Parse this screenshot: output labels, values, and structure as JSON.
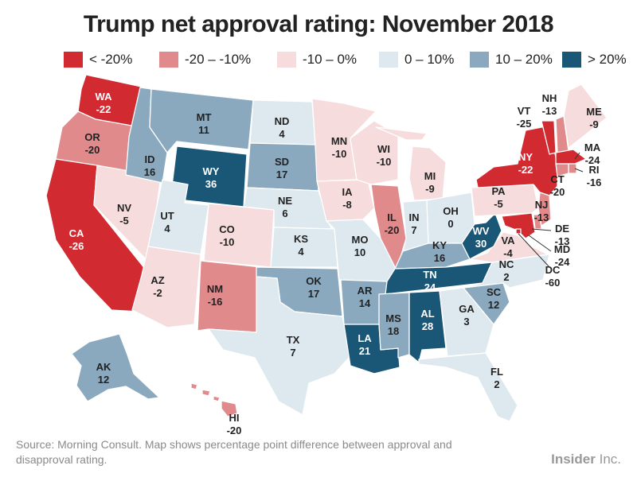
{
  "title": "Trump net approval rating: November 2018",
  "legend": [
    {
      "label": "< -20%",
      "color": "#d12b31"
    },
    {
      "label": "-20 – -10%",
      "color": "#e08a8c"
    },
    {
      "label": "-10 – 0%",
      "color": "#f6dcdc"
    },
    {
      "label": "0 – 10%",
      "color": "#dde8ef"
    },
    {
      "label": "10 – 20%",
      "color": "#8aa9bf"
    },
    {
      "label": "> 20%",
      "color": "#1a5675"
    }
  ],
  "states": {
    "WA": {
      "abbr": "WA",
      "value": "-22"
    },
    "OR": {
      "abbr": "OR",
      "value": "-20"
    },
    "CA": {
      "abbr": "CA",
      "value": "-26"
    },
    "NV": {
      "abbr": "NV",
      "value": "-5"
    },
    "ID": {
      "abbr": "ID",
      "value": "16"
    },
    "MT": {
      "abbr": "MT",
      "value": "11"
    },
    "WY": {
      "abbr": "WY",
      "value": "36"
    },
    "UT": {
      "abbr": "UT",
      "value": "4"
    },
    "AZ": {
      "abbr": "AZ",
      "value": "-2"
    },
    "CO": {
      "abbr": "CO",
      "value": "-10"
    },
    "NM": {
      "abbr": "NM",
      "value": "-16"
    },
    "ND": {
      "abbr": "ND",
      "value": "4"
    },
    "SD": {
      "abbr": "SD",
      "value": "17"
    },
    "NE": {
      "abbr": "NE",
      "value": "6"
    },
    "KS": {
      "abbr": "KS",
      "value": "4"
    },
    "OK": {
      "abbr": "OK",
      "value": "17"
    },
    "TX": {
      "abbr": "TX",
      "value": "7"
    },
    "MN": {
      "abbr": "MN",
      "value": "-10"
    },
    "IA": {
      "abbr": "IA",
      "value": "-8"
    },
    "MO": {
      "abbr": "MO",
      "value": "10"
    },
    "AR": {
      "abbr": "AR",
      "value": "14"
    },
    "LA": {
      "abbr": "LA",
      "value": "21"
    },
    "WI": {
      "abbr": "WI",
      "value": "-10"
    },
    "IL": {
      "abbr": "IL",
      "value": "-20"
    },
    "MI": {
      "abbr": "MI",
      "value": "-9"
    },
    "IN": {
      "abbr": "IN",
      "value": "7"
    },
    "OH": {
      "abbr": "OH",
      "value": "0"
    },
    "KY": {
      "abbr": "KY",
      "value": "16"
    },
    "TN": {
      "abbr": "TN",
      "value": "24"
    },
    "MS": {
      "abbr": "MS",
      "value": "18"
    },
    "AL": {
      "abbr": "AL",
      "value": "28"
    },
    "GA": {
      "abbr": "GA",
      "value": "3"
    },
    "FL": {
      "abbr": "FL",
      "value": "2"
    },
    "SC": {
      "abbr": "SC",
      "value": "12"
    },
    "NC": {
      "abbr": "NC",
      "value": "2"
    },
    "VA": {
      "abbr": "VA",
      "value": "-4"
    },
    "WV": {
      "abbr": "WV",
      "value": "30"
    },
    "PA": {
      "abbr": "PA",
      "value": "-5"
    },
    "NY": {
      "abbr": "NY",
      "value": "-22"
    },
    "VT": {
      "abbr": "VT",
      "value": "-25"
    },
    "NH": {
      "abbr": "NH",
      "value": "-13"
    },
    "ME": {
      "abbr": "ME",
      "value": "-9"
    },
    "MA": {
      "abbr": "MA",
      "value": "-24"
    },
    "RI": {
      "abbr": "RI",
      "value": "-16"
    },
    "CT": {
      "abbr": "CT",
      "value": "-20"
    },
    "NJ": {
      "abbr": "NJ",
      "value": "-13"
    },
    "DE": {
      "abbr": "DE",
      "value": "-13"
    },
    "MD": {
      "abbr": "MD",
      "value": "-24"
    },
    "DC": {
      "abbr": "DC",
      "value": "-60"
    },
    "AK": {
      "abbr": "AK",
      "value": "12"
    },
    "HI": {
      "abbr": "HI",
      "value": "-20"
    }
  },
  "source": "Source: Morning Consult. Map shows percentage point difference between approval and disapproval rating.",
  "brand": {
    "name": "Insider",
    "suffix": " Inc."
  }
}
